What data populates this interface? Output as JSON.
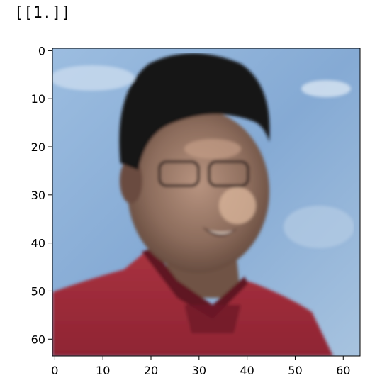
{
  "cell_output": {
    "text": "[[1.]]"
  },
  "chart_data": {
    "type": "image",
    "image_subject": "pixelated photo of a smiling person with short dark hair and glasses, wearing a dark red collared shirt, against a blue sky with light clouds",
    "image_size": [
      64,
      64
    ],
    "x_ticks": [
      0,
      10,
      20,
      30,
      40,
      50,
      60
    ],
    "y_ticks": [
      0,
      10,
      20,
      30,
      40,
      50,
      60
    ],
    "xlim": [
      -0.5,
      63.5
    ],
    "ylim": [
      63.5,
      -0.5
    ],
    "grid": false,
    "colors": {
      "sky": "#8fb2d8",
      "sky_light": "#c3d6ea",
      "hair": "#141216",
      "skin": "#9a7a68",
      "skin_light": "#c6a48e",
      "shirt": "#9e2a3a",
      "shirt_dark": "#6e1a28"
    }
  }
}
